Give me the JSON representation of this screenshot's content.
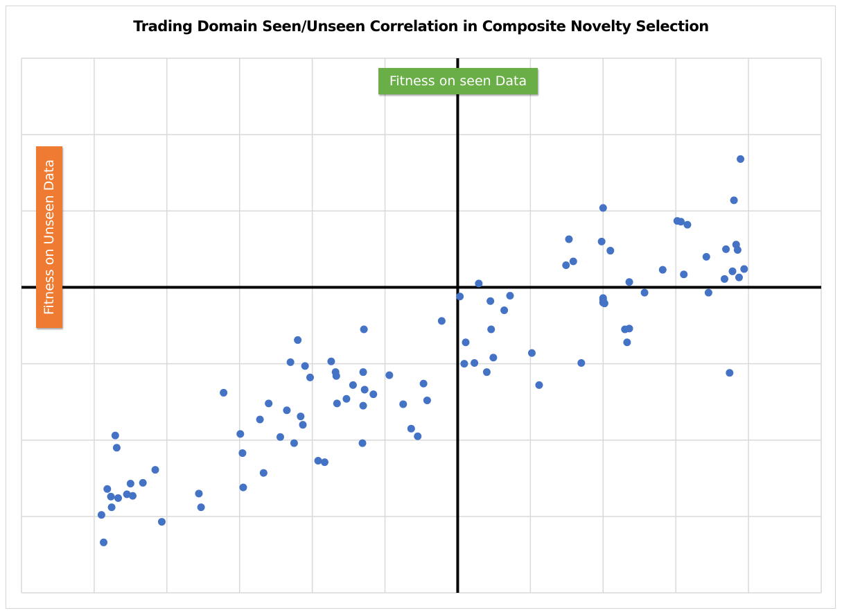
{
  "chart_data": {
    "type": "scatter",
    "title": "Trading Domain Seen/Unseen Correlation in Composite Novelty Selection",
    "xlabel": "Fitness on seen Data",
    "ylabel": "Fitness on Unseen Data",
    "xlim": [
      -6,
      5
    ],
    "ylim": [
      -4,
      3
    ],
    "grid": true,
    "axes_through_origin": true,
    "tick_labels_shown": false,
    "marker_color": "#4472c4",
    "axis_color": "#000000",
    "label_colors": {
      "x": "#6aae47",
      "y": "#ee7b31"
    },
    "series": [
      {
        "points": [
          [
            -4.9,
            -2.98
          ],
          [
            -4.87,
            -3.34
          ],
          [
            -4.82,
            -2.64
          ],
          [
            -4.77,
            -2.74
          ],
          [
            -4.76,
            -2.88
          ],
          [
            -4.71,
            -1.94
          ],
          [
            -4.69,
            -2.1
          ],
          [
            -4.67,
            -2.76
          ],
          [
            -4.55,
            -2.71
          ],
          [
            -4.5,
            -2.57
          ],
          [
            -4.47,
            -2.73
          ],
          [
            -4.33,
            -2.56
          ],
          [
            -4.16,
            -2.39
          ],
          [
            -4.07,
            -3.07
          ],
          [
            -3.56,
            -2.7
          ],
          [
            -3.53,
            -2.88
          ],
          [
            -3.22,
            -1.38
          ],
          [
            -2.99,
            -1.92
          ],
          [
            -2.96,
            -2.17
          ],
          [
            -2.95,
            -2.62
          ],
          [
            -2.72,
            -1.73
          ],
          [
            -2.67,
            -2.43
          ],
          [
            -2.6,
            -1.52
          ],
          [
            -2.44,
            -1.96
          ],
          [
            -2.35,
            -1.61
          ],
          [
            -2.3,
            -0.98
          ],
          [
            -2.25,
            -2.04
          ],
          [
            -2.2,
            -0.69
          ],
          [
            -2.16,
            -1.69
          ],
          [
            -2.13,
            -1.8
          ],
          [
            -2.1,
            -1.03
          ],
          [
            -2.03,
            -1.18
          ],
          [
            -1.92,
            -2.27
          ],
          [
            -1.83,
            -2.29
          ],
          [
            -1.74,
            -0.97
          ],
          [
            -1.68,
            -1.11
          ],
          [
            -1.67,
            -1.16
          ],
          [
            -1.66,
            -1.52
          ],
          [
            -1.53,
            -1.46
          ],
          [
            -1.44,
            -1.28
          ],
          [
            -1.31,
            -2.04
          ],
          [
            -1.3,
            -1.55
          ],
          [
            -1.3,
            -1.11
          ],
          [
            -1.29,
            -0.55
          ],
          [
            -1.28,
            -1.34
          ],
          [
            -1.16,
            -1.4
          ],
          [
            -0.94,
            -1.15
          ],
          [
            -0.75,
            -1.53
          ],
          [
            -0.64,
            -1.85
          ],
          [
            -0.55,
            -1.95
          ],
          [
            -0.47,
            -1.26
          ],
          [
            -0.42,
            -1.48
          ],
          [
            -0.22,
            -0.44
          ],
          [
            0.03,
            -0.12
          ],
          [
            0.09,
            -1.0
          ],
          [
            0.11,
            -0.72
          ],
          [
            0.23,
            -0.99
          ],
          [
            0.29,
            0.05
          ],
          [
            0.4,
            -1.11
          ],
          [
            0.45,
            -0.18
          ],
          [
            0.46,
            -0.55
          ],
          [
            0.49,
            -0.92
          ],
          [
            0.64,
            -0.3
          ],
          [
            0.72,
            -0.11
          ],
          [
            1.02,
            -0.86
          ],
          [
            1.12,
            -1.28
          ],
          [
            1.49,
            0.29
          ],
          [
            1.53,
            0.63
          ],
          [
            1.59,
            0.34
          ],
          [
            1.7,
            -0.99
          ],
          [
            1.98,
            0.6
          ],
          [
            2.0,
            1.04
          ],
          [
            2.0,
            -0.14
          ],
          [
            2.0,
            -0.2
          ],
          [
            2.0,
            -0.16
          ],
          [
            2.02,
            -0.21
          ],
          [
            2.1,
            0.48
          ],
          [
            2.3,
            -0.55
          ],
          [
            2.33,
            -0.72
          ],
          [
            2.36,
            -0.54
          ],
          [
            2.36,
            0.07
          ],
          [
            2.57,
            -0.07
          ],
          [
            2.82,
            0.23
          ],
          [
            3.02,
            0.87
          ],
          [
            3.07,
            0.86
          ],
          [
            3.11,
            0.17
          ],
          [
            3.16,
            0.82
          ],
          [
            3.42,
            0.4
          ],
          [
            3.45,
            -0.07
          ],
          [
            3.67,
            0.11
          ],
          [
            3.69,
            0.5
          ],
          [
            3.74,
            -1.12
          ],
          [
            3.78,
            0.21
          ],
          [
            3.8,
            1.14
          ],
          [
            3.83,
            0.56
          ],
          [
            3.85,
            0.49
          ],
          [
            3.87,
            0.13
          ],
          [
            3.89,
            1.68
          ],
          [
            3.94,
            0.24
          ]
        ]
      }
    ]
  }
}
